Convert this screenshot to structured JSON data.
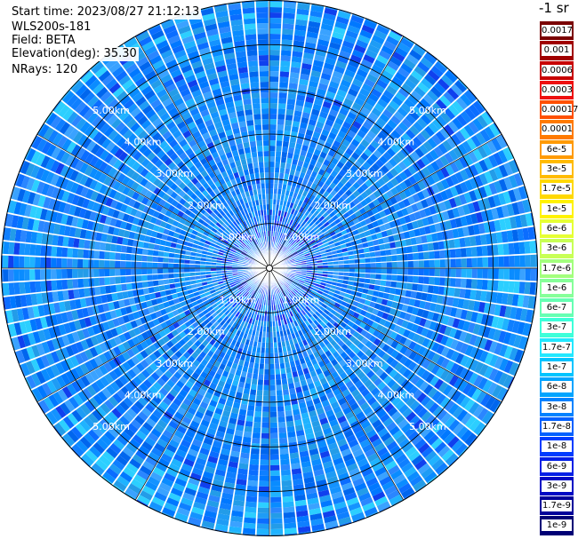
{
  "info": {
    "start_time": "Start time: 2023/08/27 21:12:13",
    "instrument": "WLS200s-181",
    "field": "Field: BETA",
    "elevation": "Elevation(deg): 35.30",
    "nrays": "NRays: 120"
  },
  "colorbar": {
    "title": "-1 sr",
    "labels": [
      "0.0017",
      "0.001",
      "0.0006",
      "0.0003",
      "0.00017",
      "0.0001",
      "6e-5",
      "3e-5",
      "1.7e-5",
      "1e-5",
      "6e-6",
      "3e-6",
      "1.7e-6",
      "1e-6",
      "6e-7",
      "3e-7",
      "1.7e-7",
      "1e-7",
      "6e-8",
      "3e-8",
      "1.7e-8",
      "1e-8",
      "6e-9",
      "3e-9",
      "1.7e-9",
      "1e-9"
    ],
    "colors": [
      "#7a0000",
      "#a00000",
      "#c80000",
      "#ee1010",
      "#ff5000",
      "#ff7a00",
      "#ff9a00",
      "#ffbb00",
      "#ffd800",
      "#fff200",
      "#e6ff33",
      "#c8ff55",
      "#a3ff7d",
      "#86ff99",
      "#66ffb3",
      "#3dffd9",
      "#22e8ff",
      "#00c4ff",
      "#00a4ff",
      "#0082ff",
      "#0060ff",
      "#003cff",
      "#001fe6",
      "#0009c4",
      "#00009a",
      "#000075"
    ]
  },
  "chart_data": {
    "type": "heatmap",
    "projection": "polar PPI",
    "field": "BETA",
    "units": "-1 sr",
    "nrays": 120,
    "range_rings_km": [
      1,
      2,
      3,
      4,
      5
    ],
    "range_ring_labels": [
      "1.00km",
      "2.00km",
      "3.00km",
      "4.00km",
      "5.00km"
    ],
    "max_range_km": 6,
    "value_range": [
      1e-09,
      0.0017
    ],
    "dominant_values": "about 1e-8 to 6e-8 over most of the scan, down to about 1e-9 near the lidar",
    "grid": true
  }
}
